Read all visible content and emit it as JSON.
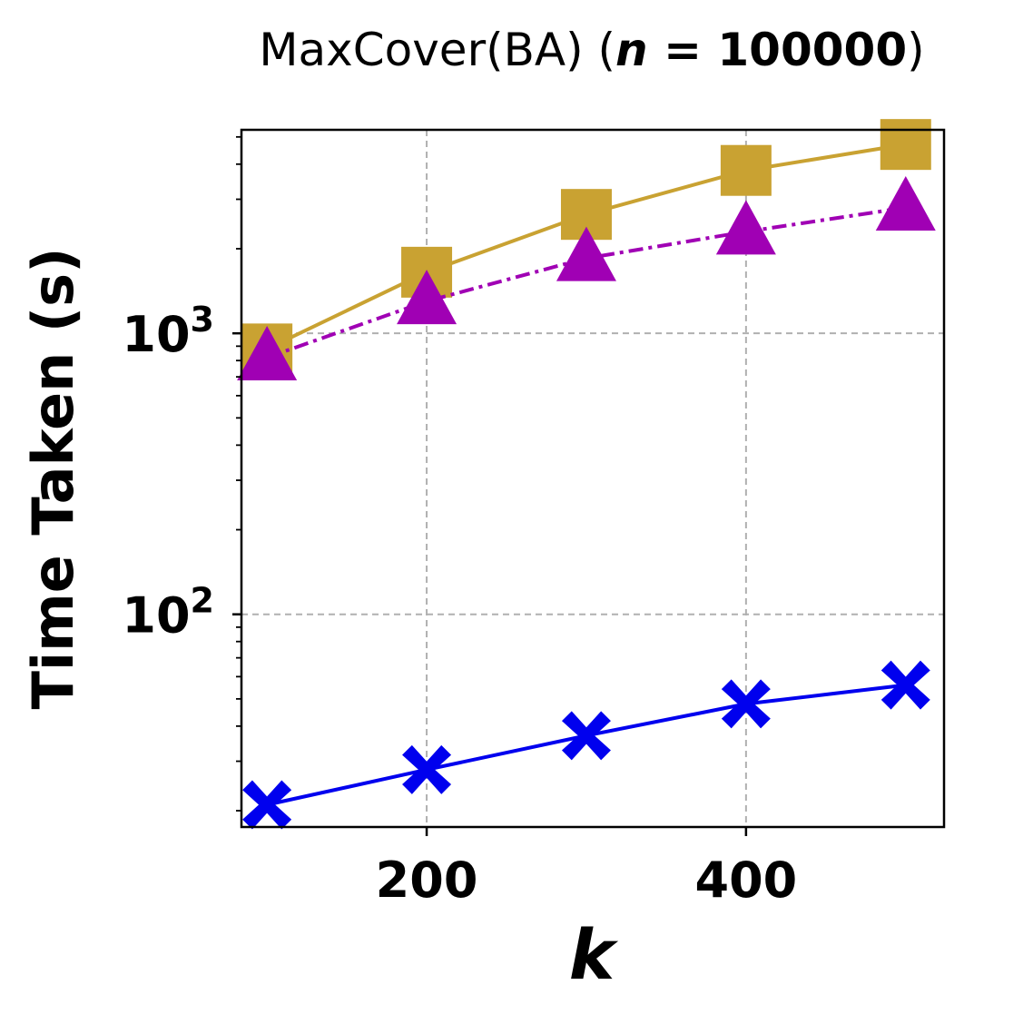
{
  "chart_data": {
    "type": "line",
    "title": {
      "prefix": "MaxCover(BA) (",
      "var": "n",
      "equals": " = ",
      "value": "100000",
      "suffix": ")"
    },
    "xlabel": "k",
    "ylabel": "Time Taken (s)",
    "x": [
      100,
      200,
      300,
      400,
      500
    ],
    "xlim": [
      84,
      524
    ],
    "x_ticks": [
      200,
      400
    ],
    "x_tick_labels": [
      "200",
      "400"
    ],
    "yscale": "log",
    "ylim": [
      17.5,
      5300
    ],
    "y_ticks": [
      {
        "base": "10",
        "exp": "2",
        "value": 100
      },
      {
        "base": "10",
        "exp": "3",
        "value": 1000
      }
    ],
    "grid": true,
    "series": [
      {
        "color": "#c9a232",
        "marker": "square",
        "line_style": "solid",
        "values": [
          880,
          1650,
          2650,
          3800,
          4700
        ]
      },
      {
        "color": "#a000b4",
        "marker": "triangle",
        "line_style": "dashdot",
        "values": [
          820,
          1300,
          1850,
          2300,
          2800
        ]
      },
      {
        "color": "#0000ee",
        "marker": "x",
        "line_style": "solid",
        "values": [
          21,
          28,
          37,
          48,
          56
        ]
      }
    ]
  }
}
